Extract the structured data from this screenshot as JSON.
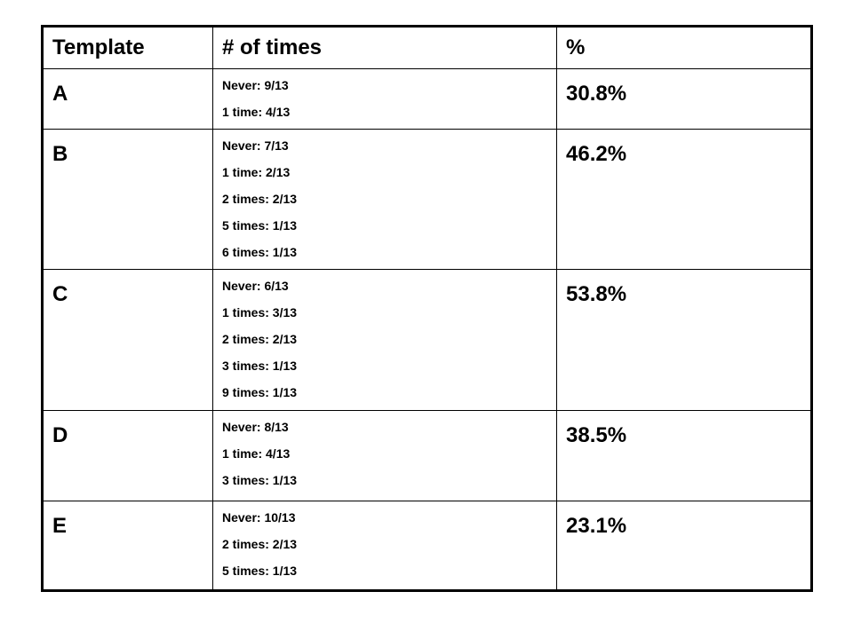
{
  "table": {
    "header": [
      "Template",
      "# of times",
      "%"
    ],
    "rows": [
      {
        "label": "A",
        "counts": [
          "Never: 9/13",
          "1 time: 4/13"
        ],
        "percent": "30.8%"
      },
      {
        "label": "B",
        "counts": [
          "Never: 7/13",
          "1 time: 2/13",
          "2 times: 2/13",
          "5 times: 1/13",
          "6 times: 1/13"
        ],
        "percent": "46.2%"
      },
      {
        "label": "C",
        "counts": [
          "Never: 6/13",
          "1 times: 3/13",
          "2 times: 2/13",
          "3 times: 1/13",
          "9 times: 1/13"
        ],
        "percent": "53.8%"
      },
      {
        "label": "D",
        "counts": [
          "Never: 8/13",
          "1 time: 4/13",
          "3 times: 1/13"
        ],
        "percent": "38.5%"
      },
      {
        "label": "E",
        "counts": [
          "Never: 10/13",
          "2 times: 2/13",
          "5 times: 1/13"
        ],
        "percent": "23.1%"
      }
    ]
  }
}
